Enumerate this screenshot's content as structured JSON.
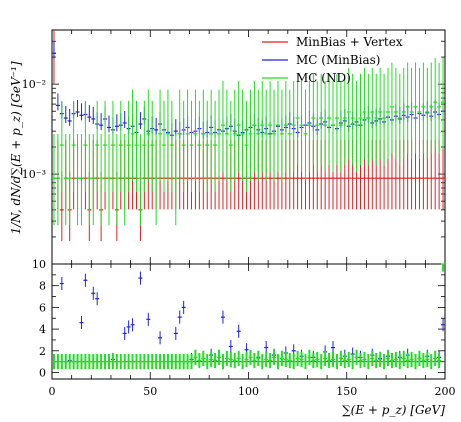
{
  "chart_data": [
    {
      "type": "scatter",
      "panel": "main",
      "ylabel": "1/N, dN/d∑(E + p_z) [GeV⁻¹]",
      "y_scale": "log",
      "ylim": [
        0.0001,
        0.04
      ],
      "xlim": [
        0,
        200
      ],
      "y_tick_labels": [
        "10⁻²",
        "10⁻³"
      ],
      "y_tick_values": [
        0.01,
        0.001
      ],
      "legend_position": "top-right",
      "series": [
        {
          "name": "MinBias + Vertex",
          "color": "#dd2222",
          "x": [
            1,
            3,
            5,
            7,
            9,
            11,
            13,
            15,
            17,
            19,
            21,
            23,
            25,
            27,
            29,
            31,
            33,
            35,
            37,
            39,
            41,
            43,
            45,
            47,
            49,
            51,
            53,
            55,
            57,
            59,
            61,
            63,
            65,
            67,
            69,
            71,
            73,
            75,
            77,
            79,
            81,
            83,
            85,
            87,
            89,
            91,
            93,
            95,
            97,
            99,
            101,
            103,
            105,
            107,
            109,
            111,
            113,
            115,
            117,
            119,
            121,
            123,
            125,
            127,
            129,
            131,
            133,
            135,
            137,
            139,
            141,
            143,
            145,
            147,
            149,
            151,
            153,
            155,
            157,
            159,
            161,
            163,
            165,
            167,
            169,
            171,
            173,
            175,
            177,
            179,
            181,
            183,
            185,
            187,
            189,
            191,
            193,
            195,
            197,
            199
          ],
          "y": [
            0.022,
            0.0009,
            0.0004,
            0.0009,
            0.0004,
            0.0009,
            0.0009,
            0.0009,
            0.0009,
            0.0004,
            0.0009,
            0.0009,
            0.0004,
            0.0009,
            0.0009,
            0.0009,
            0.0004,
            0.0009,
            0.0009,
            0.0009,
            0.0009,
            0.0009,
            0.0004,
            0.0009,
            0.0009,
            0.0009,
            0.0009,
            0.0009,
            0.0009,
            0.0009,
            0.0009,
            0.0009,
            0.0009,
            0.0009,
            0.0009,
            0.0009,
            0.0009,
            0.0009,
            0.0009,
            0.0009,
            0.0009,
            0.0009,
            0.0009,
            0.0009,
            0.0009,
            0.0009,
            0.0009,
            0.0009,
            0.0009,
            0.0009,
            0.0009,
            0.0009,
            0.0009,
            0.0009,
            0.0009,
            0.0009,
            0.0009,
            0.0009,
            0.0009,
            0.0009,
            0.0009,
            0.0009,
            0.0009,
            0.0009,
            0.0009,
            0.0009,
            0.0009,
            0.0009,
            0.0009,
            0.0009,
            0.0009,
            0.0009,
            0.0009,
            0.0009,
            0.0009,
            0.0009,
            0.0009,
            0.0009,
            0.0009,
            0.0009,
            0.0009,
            0.0009,
            0.0009,
            0.0009,
            0.0009,
            0.0009,
            0.0009,
            0.0009,
            0.0009,
            0.0009,
            0.0009,
            0.0009,
            0.0009,
            0.0009,
            0.0009,
            0.0009,
            0.0009,
            0.0009,
            0.0009,
            0.0009
          ]
        },
        {
          "name": "MC (MinBias)",
          "color": "#2222dd",
          "x": [
            1,
            3,
            5,
            7,
            9,
            11,
            13,
            15,
            17,
            19,
            21,
            23,
            25,
            27,
            29,
            31,
            33,
            35,
            37,
            39,
            41,
            43,
            45,
            47,
            49,
            51,
            53,
            55,
            57,
            59,
            61,
            63,
            65,
            67,
            69,
            71,
            73,
            75,
            77,
            79,
            81,
            83,
            85,
            87,
            89,
            91,
            93,
            95,
            97,
            99,
            101,
            103,
            105,
            107,
            109,
            111,
            113,
            115,
            117,
            119,
            121,
            123,
            125,
            127,
            129,
            131,
            133,
            135,
            137,
            139,
            141,
            143,
            145,
            147,
            149,
            151,
            153,
            155,
            157,
            159,
            161,
            163,
            165,
            167,
            169,
            171,
            173,
            175,
            177,
            179,
            181,
            183,
            185,
            187,
            189,
            191,
            193,
            195,
            197,
            199
          ],
          "y": [
            0.022,
            0.0058,
            0.0047,
            0.0042,
            0.0039,
            0.0047,
            0.0049,
            0.0045,
            0.0046,
            0.0043,
            0.0041,
            0.0036,
            0.0035,
            0.0041,
            0.0033,
            0.0031,
            0.0034,
            0.0035,
            0.0037,
            0.0032,
            0.0034,
            0.0029,
            0.0036,
            0.0041,
            0.003,
            0.0032,
            0.0031,
            0.0036,
            0.0031,
            0.0029,
            0.0027,
            0.003,
            0.0028,
            0.0031,
            0.0033,
            0.0029,
            0.003,
            0.0032,
            0.0028,
            0.0029,
            0.0033,
            0.0029,
            0.0031,
            0.003,
            0.0032,
            0.0034,
            0.003,
            0.0027,
            0.0029,
            0.0031,
            0.0033,
            0.0035,
            0.0031,
            0.0029,
            0.0032,
            0.0028,
            0.003,
            0.0034,
            0.0031,
            0.0033,
            0.0036,
            0.0032,
            0.0029,
            0.0033,
            0.0035,
            0.0037,
            0.0034,
            0.0031,
            0.0036,
            0.0038,
            0.0033,
            0.0035,
            0.0032,
            0.0037,
            0.0039,
            0.0034,
            0.0036,
            0.0038,
            0.0035,
            0.004,
            0.0042,
            0.0037,
            0.0039,
            0.0041,
            0.0038,
            0.0043,
            0.004,
            0.0044,
            0.0041,
            0.0045,
            0.0043,
            0.0046,
            0.0042,
            0.0047,
            0.0045,
            0.0048,
            0.0044,
            0.0049,
            0.0046,
            0.005
          ]
        },
        {
          "name": "MC (ND)",
          "color": "#22dd22",
          "x": [
            1,
            3,
            5,
            7,
            9,
            11,
            13,
            15,
            17,
            19,
            21,
            23,
            25,
            27,
            29,
            31,
            33,
            35,
            37,
            39,
            41,
            43,
            45,
            47,
            49,
            51,
            53,
            55,
            57,
            59,
            61,
            63,
            65,
            67,
            69,
            71,
            73,
            75,
            77,
            79,
            81,
            83,
            85,
            87,
            89,
            91,
            93,
            95,
            97,
            99,
            101,
            103,
            105,
            107,
            109,
            111,
            113,
            115,
            117,
            119,
            121,
            123,
            125,
            127,
            129,
            131,
            133,
            135,
            137,
            139,
            141,
            143,
            145,
            147,
            149,
            151,
            153,
            155,
            157,
            159,
            161,
            163,
            165,
            167,
            169,
            171,
            173,
            175,
            177,
            179,
            181,
            183,
            185,
            187,
            189,
            191,
            193,
            195,
            197,
            199
          ],
          "y": [
            0.0009,
            0.0009,
            0.0021,
            0.0009,
            0.0009,
            0.0021,
            0.0009,
            0.0009,
            0.0021,
            0.0009,
            0.0009,
            0.0021,
            0.0009,
            0.0021,
            0.0009,
            0.0021,
            0.0009,
            0.0021,
            0.0009,
            0.0021,
            0.0028,
            0.0021,
            0.0009,
            0.0021,
            0.0028,
            0.0021,
            0.0009,
            0.0028,
            0.0021,
            0.0028,
            0.0021,
            0.0009,
            0.0028,
            0.0021,
            0.0028,
            0.0021,
            0.0028,
            0.0021,
            0.0028,
            0.0021,
            0.0028,
            0.0021,
            0.0028,
            0.0035,
            0.0028,
            0.0021,
            0.0028,
            0.0035,
            0.0028,
            0.0021,
            0.0028,
            0.0035,
            0.0028,
            0.0035,
            0.0028,
            0.0035,
            0.0028,
            0.0035,
            0.0028,
            0.0035,
            0.0028,
            0.0035,
            0.0042,
            0.0035,
            0.0028,
            0.0035,
            0.0042,
            0.0035,
            0.0042,
            0.0035,
            0.0042,
            0.0035,
            0.0042,
            0.0035,
            0.0042,
            0.0049,
            0.0042,
            0.0035,
            0.0042,
            0.0049,
            0.0042,
            0.0049,
            0.0042,
            0.0049,
            0.0042,
            0.0049,
            0.0056,
            0.0049,
            0.0042,
            0.0049,
            0.0056,
            0.0049,
            0.0056,
            0.0049,
            0.0056,
            0.0049,
            0.0056,
            0.0063,
            0.0056,
            0.0063
          ]
        }
      ]
    },
    {
      "type": "scatter",
      "panel": "ratio",
      "xlabel": "∑(E + p_z) [GeV]",
      "xlim": [
        0,
        200
      ],
      "ylim": [
        -0.6,
        10
      ],
      "x_tick_labels": [
        "0",
        "50",
        "100",
        "150",
        "200"
      ],
      "x_tick_values": [
        0,
        50,
        100,
        150,
        200
      ],
      "y_tick_labels": [
        "0",
        "2",
        "4",
        "6",
        "8",
        "10"
      ],
      "y_tick_values": [
        0,
        2,
        4,
        6,
        8,
        10
      ],
      "reference_line": 1,
      "series": [
        {
          "name": "MC (MinBias)",
          "color": "#2222dd",
          "x": [
            1,
            5,
            9,
            15,
            17,
            21,
            23,
            31,
            37,
            39,
            41,
            45,
            49,
            55,
            63,
            65,
            67,
            71,
            75,
            81,
            87,
            91,
            95,
            99,
            105,
            109,
            113,
            119,
            123,
            127,
            133,
            139,
            143,
            149,
            153,
            157,
            163,
            167,
            171,
            177,
            181,
            187,
            191,
            197,
            199
          ],
          "y": [
            1.0,
            8.2,
            1.1,
            4.6,
            8.5,
            7.3,
            6.8,
            1.2,
            3.6,
            4.2,
            4.4,
            8.7,
            4.9,
            3.2,
            3.6,
            5.1,
            6.0,
            1.2,
            1.1,
            1.6,
            5.1,
            2.4,
            3.8,
            2.1,
            1.4,
            2.3,
            1.6,
            1.8,
            2.0,
            1.5,
            1.4,
            1.9,
            2.3,
            1.5,
            1.7,
            1.4,
            1.6,
            1.3,
            1.5,
            1.4,
            1.6,
            1.3,
            1.5,
            1.4,
            4.4
          ]
        },
        {
          "name": "MC (ND)",
          "color": "#22dd22",
          "x": [
            1,
            3,
            5,
            7,
            9,
            11,
            13,
            15,
            17,
            19,
            21,
            23,
            25,
            27,
            29,
            31,
            33,
            35,
            37,
            39,
            41,
            43,
            45,
            47,
            49,
            51,
            53,
            55,
            57,
            59,
            61,
            63,
            65,
            67,
            69,
            71,
            73,
            75,
            77,
            79,
            81,
            83,
            85,
            87,
            89,
            91,
            93,
            95,
            97,
            99,
            101,
            103,
            105,
            107,
            109,
            111,
            113,
            115,
            117,
            119,
            121,
            123,
            125,
            127,
            129,
            131,
            133,
            135,
            137,
            139,
            141,
            143,
            145,
            147,
            149,
            151,
            153,
            155,
            157,
            159,
            161,
            163,
            165,
            167,
            169,
            171,
            173,
            175,
            177,
            179,
            181,
            183,
            185,
            187,
            189,
            191,
            193,
            195,
            197,
            199
          ],
          "y": [
            1.0,
            1.0,
            1.0,
            1.0,
            1.0,
            1.0,
            1.0,
            1.0,
            1.0,
            1.0,
            1.0,
            1.0,
            1.0,
            1.0,
            1.0,
            1.0,
            1.0,
            1.0,
            1.0,
            1.0,
            1.0,
            1.0,
            1.0,
            1.0,
            1.0,
            1.0,
            1.0,
            1.0,
            1.0,
            1.0,
            1.0,
            1.0,
            1.0,
            1.0,
            1.0,
            1.0,
            1.4,
            1.1,
            1.3,
            1.0,
            1.2,
            1.1,
            1.4,
            1.0,
            1.3,
            1.2,
            1.1,
            1.3,
            1.0,
            1.2,
            1.4,
            1.1,
            1.3,
            1.0,
            1.2,
            1.1,
            1.4,
            1.0,
            1.3,
            1.2,
            1.1,
            1.0,
            1.3,
            1.2,
            1.0,
            1.4,
            1.1,
            1.2,
            1.0,
            1.3,
            1.1,
            1.2,
            1.0,
            1.3,
            1.1,
            1.2,
            1.0,
            1.4,
            1.1,
            1.2,
            1.0,
            1.3,
            1.1,
            1.2,
            1.0,
            1.3,
            1.1,
            1.2,
            1.0,
            1.3,
            1.1,
            1.2,
            1.0,
            1.3,
            1.1,
            1.2,
            1.0,
            1.3,
            1.1,
            10.0
          ]
        }
      ]
    }
  ]
}
